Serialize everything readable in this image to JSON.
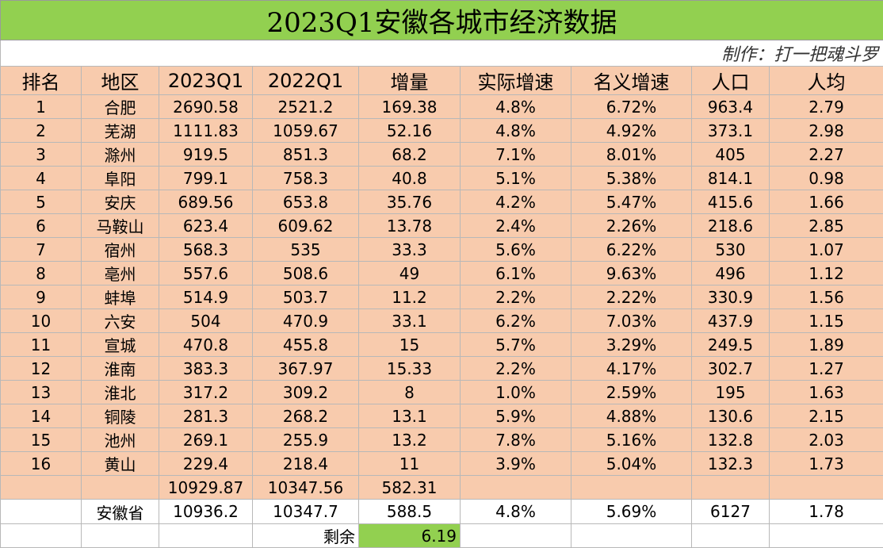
{
  "title": "2023Q1安徽各城市经济数据",
  "credit": "制作：打一把魂斗罗",
  "headers": [
    "排名",
    "地区",
    "2023Q1",
    "2022Q1",
    "增量",
    "实际增速",
    "名义增速",
    "人口",
    "人均"
  ],
  "rows": [
    [
      "1",
      "合肥",
      "2690.58",
      "2521.2",
      "169.38",
      "4.8%",
      "6.72%",
      "963.4",
      "2.79"
    ],
    [
      "2",
      "芜湖",
      "1111.83",
      "1059.67",
      "52.16",
      "4.8%",
      "4.92%",
      "373.1",
      "2.98"
    ],
    [
      "3",
      "滁州",
      "919.5",
      "851.3",
      "68.2",
      "7.1%",
      "8.01%",
      "405",
      "2.27"
    ],
    [
      "4",
      "阜阳",
      "799.1",
      "758.3",
      "40.8",
      "5.1%",
      "5.38%",
      "814.1",
      "0.98"
    ],
    [
      "5",
      "安庆",
      "689.56",
      "653.8",
      "35.76",
      "4.2%",
      "5.47%",
      "415.6",
      "1.66"
    ],
    [
      "6",
      "马鞍山",
      "623.4",
      "609.62",
      "13.78",
      "2.4%",
      "2.26%",
      "218.6",
      "2.85"
    ],
    [
      "7",
      "宿州",
      "568.3",
      "535",
      "33.3",
      "5.6%",
      "6.22%",
      "530",
      "1.07"
    ],
    [
      "8",
      "亳州",
      "557.6",
      "508.6",
      "49",
      "6.1%",
      "9.63%",
      "496",
      "1.12"
    ],
    [
      "9",
      "蚌埠",
      "514.9",
      "503.7",
      "11.2",
      "2.2%",
      "2.22%",
      "330.9",
      "1.56"
    ],
    [
      "10",
      "六安",
      "504",
      "470.9",
      "33.1",
      "6.2%",
      "7.03%",
      "437.9",
      "1.15"
    ],
    [
      "11",
      "宣城",
      "470.8",
      "455.8",
      "15",
      "5.7%",
      "3.29%",
      "249.5",
      "1.89"
    ],
    [
      "12",
      "淮南",
      "383.3",
      "367.97",
      "15.33",
      "2.2%",
      "4.17%",
      "302.7",
      "1.27"
    ],
    [
      "13",
      "淮北",
      "317.2",
      "309.2",
      "8",
      "1.0%",
      "2.59%",
      "195",
      "1.63"
    ],
    [
      "14",
      "铜陵",
      "281.3",
      "268.2",
      "13.1",
      "5.9%",
      "4.88%",
      "130.6",
      "2.15"
    ],
    [
      "15",
      "池州",
      "269.1",
      "255.9",
      "13.2",
      "7.8%",
      "5.16%",
      "132.8",
      "2.03"
    ],
    [
      "16",
      "黄山",
      "229.4",
      "218.4",
      "11",
      "3.9%",
      "5.04%",
      "132.3",
      "1.73"
    ]
  ],
  "sum_row": [
    "",
    "",
    "10929.87",
    "10347.56",
    "582.31",
    "",
    "",
    "",
    ""
  ],
  "province_row": [
    "",
    "安徽省",
    "10936.2",
    "10347.7",
    "588.5",
    "4.8%",
    "5.69%",
    "6127",
    "1.78"
  ],
  "remainder": {
    "label": "剩余",
    "value": "6.19"
  },
  "colors": {
    "title_bg": "#92d050",
    "cell_bg": "#f8cbad",
    "grid": "#b8b8b8",
    "highlight_bg": "#92d050"
  }
}
